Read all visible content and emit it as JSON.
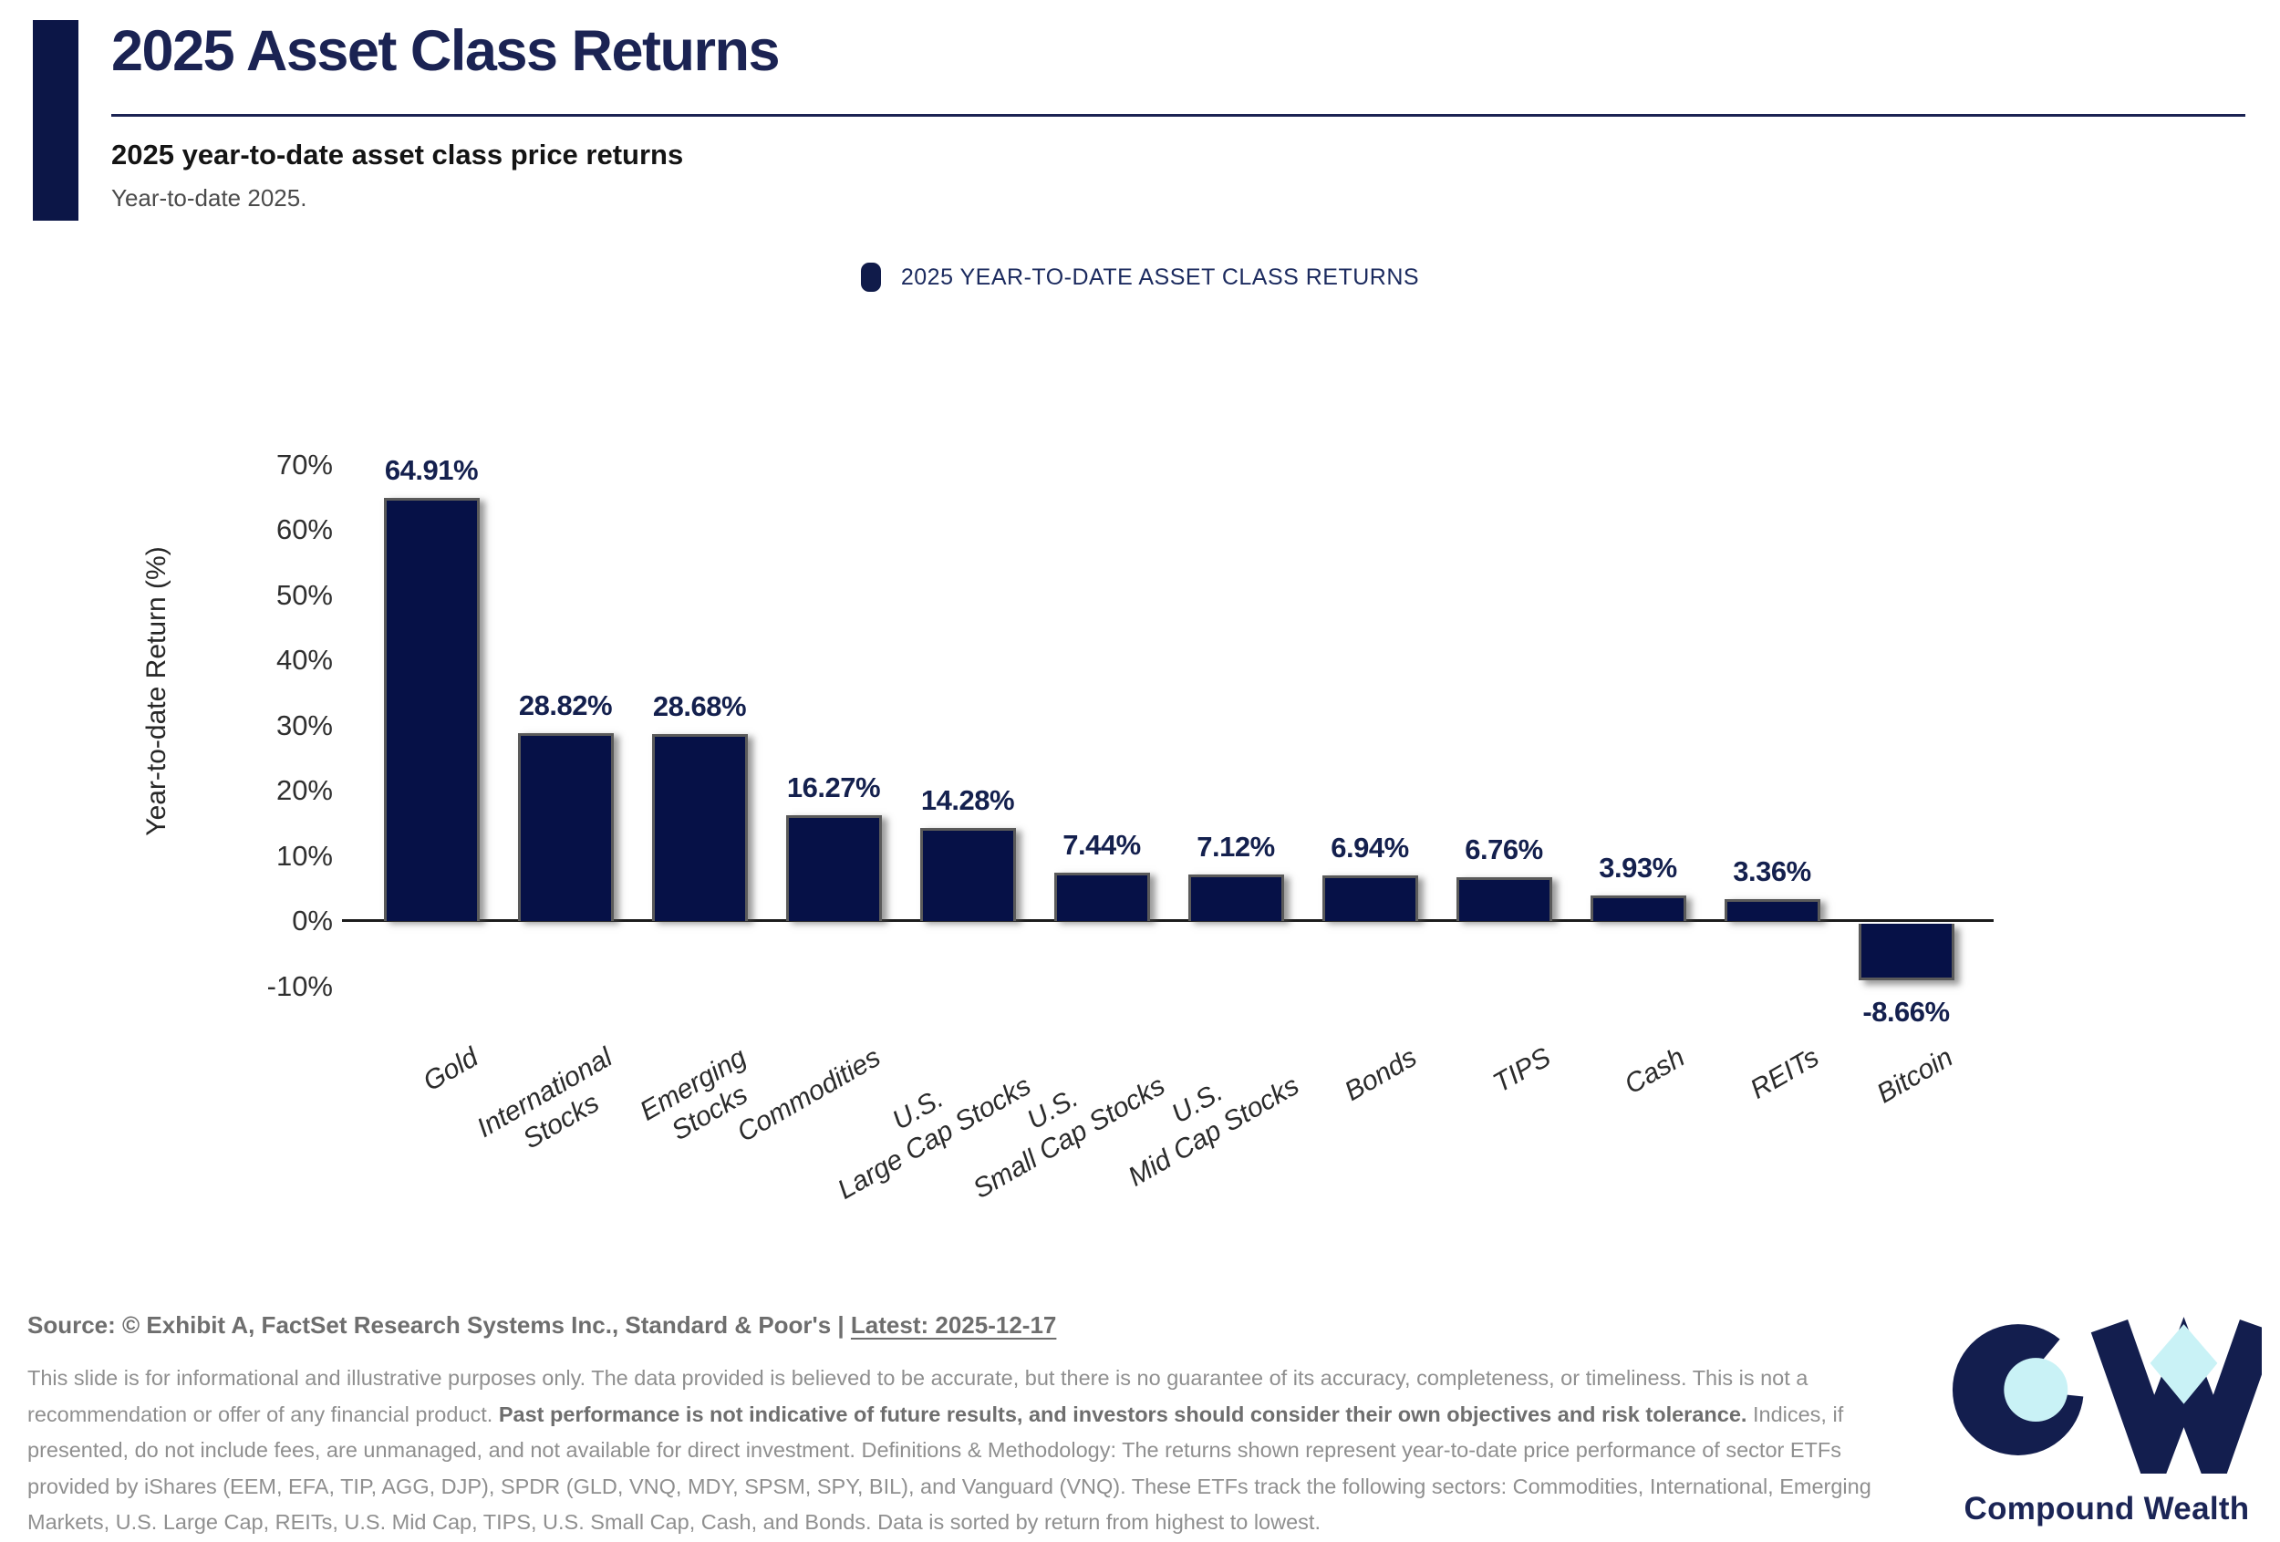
{
  "header": {
    "title": "2025 Asset Class Returns",
    "subtitle": "2025 year-to-date asset class price returns",
    "period": "Year-to-date 2025."
  },
  "legend": {
    "label": "2025 YEAR-TO-DATE ASSET CLASS RETURNS",
    "marker_color": "#101b4a"
  },
  "chart_data": {
    "type": "bar",
    "title": "2025 YEAR-TO-DATE ASSET CLASS RETURNS",
    "categories": [
      "Gold",
      "International\nStocks",
      "Emerging\nStocks",
      "Commodities",
      "U.S.\nLarge Cap Stocks",
      "U.S.\nSmall Cap Stocks",
      "U.S.\nMid Cap Stocks",
      "Bonds",
      "TIPS",
      "Cash",
      "REITs",
      "Bitcoin"
    ],
    "values": [
      64.91,
      28.82,
      28.68,
      16.27,
      14.28,
      7.44,
      7.12,
      6.94,
      6.76,
      3.93,
      3.36,
      -8.66
    ],
    "value_labels": [
      "64.91%",
      "28.82%",
      "28.68%",
      "16.27%",
      "14.28%",
      "7.44%",
      "7.12%",
      "6.94%",
      "6.76%",
      "3.93%",
      "3.36%",
      "-8.66%"
    ],
    "xlabel": "",
    "ylabel": "Year-to-date Return (%)",
    "ylim": [
      -10,
      70
    ],
    "ytick_step": 10,
    "ytick_suffix": "%",
    "grid": false,
    "legend_position": "top-center",
    "bar_color": "#061147",
    "value_label_color": "#14204e",
    "sort_note": "sorted by return from highest to lowest"
  },
  "footer": {
    "source_prefix": "Source: © Exhibit A, FactSet Research Systems Inc., Standard & Poor's | ",
    "source_latest": "Latest: 2025-12-17",
    "disclaimer_part1": "This slide is for informational and illustrative purposes only. The data provided is believed to be accurate, but there is no guarantee of its accuracy, completeness, or timeliness. This is not a recommendation or offer of any financial product. ",
    "disclaimer_bold": "Past performance is not indicative of future results, and investors should consider their own objectives and risk tolerance.",
    "disclaimer_part2": " Indices, if presented, do not include fees, are unmanaged, and not available for direct investment. Definitions & Methodology: The returns shown represent year-to-date price performance of sector ETFs provided by iShares (EEM, EFA, TIP, AGG, DJP), SPDR (GLD, VNQ, MDY, SPSM, SPY, BIL), and Vanguard (VNQ). These ETFs track the following sectors: Commodities, International, Emerging Markets, U.S. Large Cap, REITs, U.S. Mid Cap, TIPS, U.S. Small Cap, Cash, and Bonds. Data is sorted by return from highest to lowest.",
    "logo_text": "Compound Wealth"
  },
  "colors": {
    "navy_dark": "#061147",
    "navy_text": "#1b2353",
    "accent_bar": "#0c1647",
    "logo_navy": "#131e4e",
    "logo_cyan": "#c9f2f6",
    "disclaimer_gray": "#8f8f8f",
    "source_gray": "#6e6e6e"
  }
}
